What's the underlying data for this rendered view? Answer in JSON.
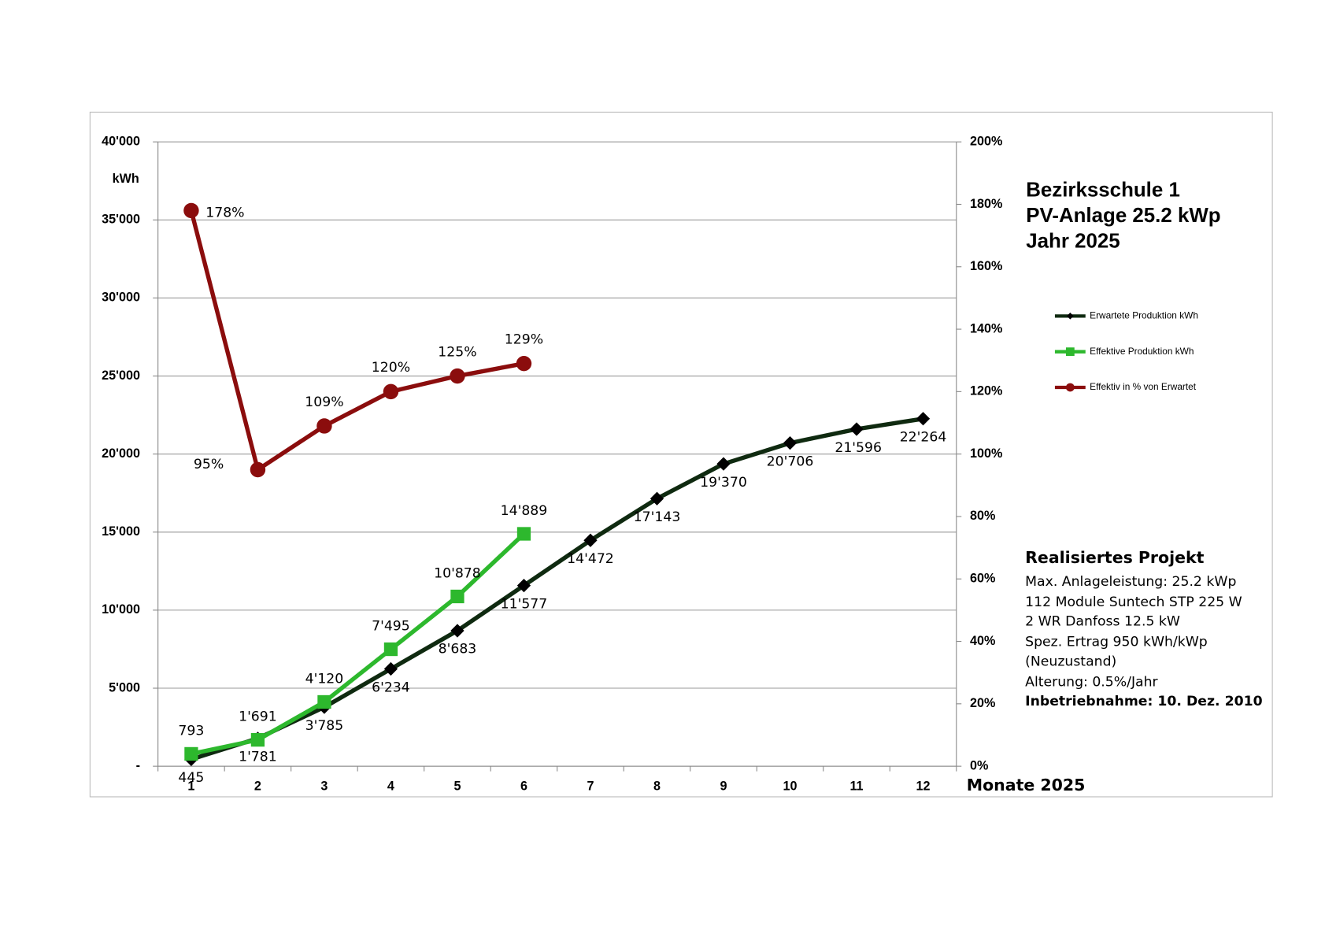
{
  "chart_data": {
    "type": "line",
    "title": [
      "Bezirksschule 1",
      "PV-Anlage 25.2 kWp",
      "Jahr 2025"
    ],
    "y_label": "kWh",
    "x_label": "Monate 2025",
    "categories": [
      "1",
      "2",
      "3",
      "4",
      "5",
      "6",
      "7",
      "8",
      "9",
      "10",
      "11",
      "12"
    ],
    "ylim": [
      0,
      40000
    ],
    "yticks": [
      {
        "value": 0,
        "label": "-"
      },
      {
        "value": 5000,
        "label": "5'000"
      },
      {
        "value": 10000,
        "label": "10'000"
      },
      {
        "value": 15000,
        "label": "15'000"
      },
      {
        "value": 20000,
        "label": "20'000"
      },
      {
        "value": 25000,
        "label": "25'000"
      },
      {
        "value": 30000,
        "label": "30'000"
      },
      {
        "value": 35000,
        "label": "35'000"
      },
      {
        "value": 40000,
        "label": "40'000"
      }
    ],
    "y2lim": [
      0,
      200
    ],
    "y2ticks": [
      {
        "value": 0,
        "label": "0%"
      },
      {
        "value": 20,
        "label": "20%"
      },
      {
        "value": 40,
        "label": "40%"
      },
      {
        "value": 60,
        "label": "60%"
      },
      {
        "value": 80,
        "label": "80%"
      },
      {
        "value": 100,
        "label": "100%"
      },
      {
        "value": 120,
        "label": "120%"
      },
      {
        "value": 140,
        "label": "140%"
      },
      {
        "value": 160,
        "label": "160%"
      },
      {
        "value": 180,
        "label": "180%"
      },
      {
        "value": 200,
        "label": "200%"
      }
    ],
    "grid": true,
    "legend": "right",
    "series": [
      {
        "name": "Erwartete Produktion kWh",
        "color": "#0f2a10",
        "marker": "diamond",
        "values": [
          445,
          1781,
          3785,
          6234,
          8683,
          11577,
          14472,
          17143,
          19370,
          20706,
          21596,
          22264
        ],
        "value_labels": [
          "445",
          "1'781",
          "3'785",
          "6'234",
          "8'683",
          "11'577",
          "14'472",
          "17'143",
          "19'370",
          "20'706",
          "21'596",
          "22'264"
        ]
      },
      {
        "name": "Effektive Produktion kWh",
        "color": "#2db82d",
        "marker": "square",
        "values": [
          793,
          1691,
          4120,
          7495,
          10878,
          14889,
          null,
          null,
          null,
          null,
          null,
          null
        ],
        "value_labels": [
          "793",
          "1'691",
          "4'120",
          "7'495",
          "10'878",
          "14'889",
          null,
          null,
          null,
          null,
          null,
          null
        ]
      },
      {
        "name": "Effektiv in % von Erwartet",
        "color": "#8b0d0d",
        "marker": "circle",
        "axis": "y2",
        "values": [
          178,
          95,
          109,
          120,
          125,
          129,
          null,
          null,
          null,
          null,
          null,
          null
        ],
        "value_labels": [
          "178%",
          "95%",
          "109%",
          "120%",
          "125%",
          "129%",
          null,
          null,
          null,
          null,
          null,
          null
        ]
      }
    ],
    "annotations": [
      "Realisiertes Projekt",
      "Max. Anlageleistung: 25.2 kWp",
      "112 Module Suntech STP 225 W",
      "2 WR Danfoss 12.5 kW",
      "Spez. Ertrag 950 kWh/kWp",
      "(Neuzustand)",
      "Alterung: 0.5%/Jahr",
      "Inbetriebnahme: 10. Dez. 2010"
    ]
  }
}
